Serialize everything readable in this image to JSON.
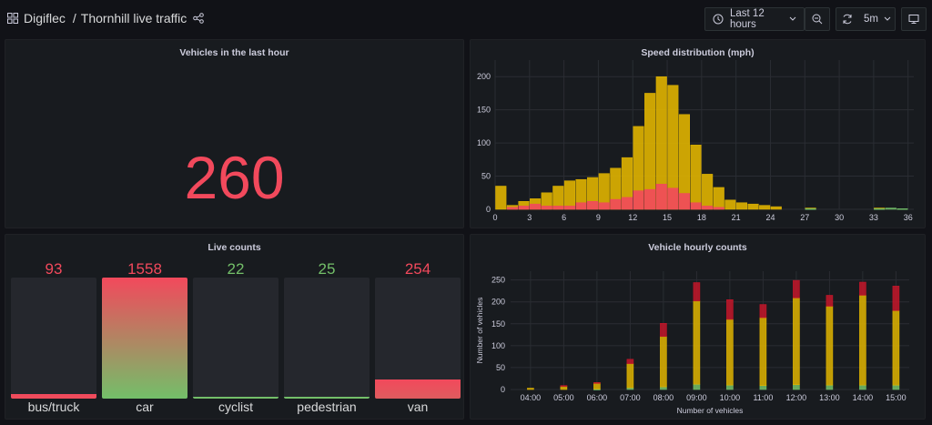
{
  "header": {
    "app": "Digiflec",
    "sep": "/",
    "title": "Thornhill live traffic",
    "time_range": "Last 12 hours",
    "refresh": "5m"
  },
  "panels": {
    "vehicles_last_hour": {
      "title": "Vehicles in the last hour",
      "value": "260",
      "color": "#f2495c"
    },
    "speed_distribution": {
      "title": "Speed distribution (mph)"
    },
    "live_counts": {
      "title": "Live counts"
    },
    "hourly_counts": {
      "title": "Vehicle hourly counts"
    }
  },
  "live_counts": [
    {
      "label": "bus/truck",
      "value": "93",
      "fill": 0.04,
      "color": "#f2495c"
    },
    {
      "label": "car",
      "value": "1558",
      "fill": 1.0,
      "color": "#f2495c"
    },
    {
      "label": "cyclist",
      "value": "22",
      "fill": 0.01,
      "color": "#73bf69"
    },
    {
      "label": "pedestrian",
      "value": "25",
      "fill": 0.01,
      "color": "#73bf69"
    },
    {
      "label": "van",
      "value": "254",
      "fill": 0.16,
      "color": "#f2495c"
    }
  ],
  "colors": {
    "yellow": "#e0b400",
    "red": "#f2495c",
    "green": "#73bf69",
    "darkred": "#c4162a",
    "grid": "#2a2d33",
    "axis_text": "#ccccdc"
  },
  "chart_data": [
    {
      "type": "bar",
      "title": "Speed distribution (mph)",
      "xlim": [
        0,
        36.5
      ],
      "ylim": [
        0,
        225
      ],
      "xticks": [
        0,
        3,
        6,
        9,
        12,
        15,
        18,
        21,
        24,
        27,
        30,
        33,
        36
      ],
      "yticks": [
        0,
        50,
        100,
        150,
        200
      ],
      "grid": true,
      "bin_width": 1,
      "series": [
        {
          "color": "#e0b400",
          "x": [
            0,
            1,
            2,
            3,
            4,
            5,
            6,
            7,
            8,
            9,
            10,
            11,
            12,
            13,
            14,
            15,
            16,
            17,
            18,
            19,
            20,
            21,
            22,
            23,
            24,
            27,
            33
          ],
          "values": [
            35,
            6,
            12,
            16,
            25,
            35,
            43,
            45,
            48,
            54,
            62,
            78,
            125,
            175,
            200,
            187,
            143,
            97,
            53,
            33,
            14,
            10,
            8,
            6,
            4,
            2,
            2
          ]
        },
        {
          "color": "#f2495c",
          "x": [
            1,
            2,
            3,
            4,
            5,
            6,
            7,
            8,
            9,
            10,
            11,
            12,
            13,
            14,
            15,
            16,
            17,
            18,
            19
          ],
          "values": [
            3,
            5,
            8,
            5,
            5,
            5,
            10,
            12,
            10,
            15,
            18,
            28,
            30,
            38,
            32,
            24,
            10,
            5,
            3
          ]
        },
        {
          "color": "#73bf69",
          "x": [
            27,
            33,
            34,
            35
          ],
          "values": [
            1,
            1,
            2,
            1
          ]
        }
      ]
    },
    {
      "type": "bar",
      "title": "Vehicle hourly counts",
      "xlabel": "Number of vehicles",
      "ylabel": "Number of vehicles",
      "categories": [
        "04:00",
        "05:00",
        "06:00",
        "07:00",
        "08:00",
        "09:00",
        "10:00",
        "11:00",
        "12:00",
        "13:00",
        "14:00",
        "15:00"
      ],
      "ylim": [
        0,
        270
      ],
      "yticks": [
        0,
        50,
        100,
        150,
        200,
        250
      ],
      "grid": true,
      "stacked": true,
      "series": [
        {
          "color": "#73bf69",
          "values": [
            0,
            0,
            1,
            4,
            6,
            12,
            10,
            9,
            11,
            10,
            10,
            10
          ]
        },
        {
          "color": "#e0b400",
          "values": [
            3,
            8,
            14,
            55,
            115,
            190,
            150,
            155,
            198,
            180,
            205,
            170
          ]
        },
        {
          "color": "#c4162a",
          "values": [
            0,
            1,
            1,
            10,
            30,
            42,
            45,
            30,
            40,
            25,
            30,
            56
          ]
        }
      ]
    }
  ]
}
